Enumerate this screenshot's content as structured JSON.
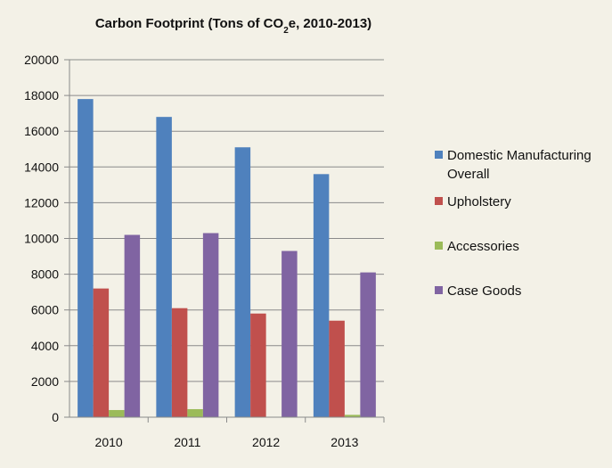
{
  "chart_data": {
    "type": "bar",
    "title": {
      "prefix": "Carbon Footprint (Tons  of CO",
      "subscript": "2",
      "suffix": "e, 2010-2013)"
    },
    "xlabel": "",
    "ylabel": "",
    "categories": [
      "2010",
      "2011",
      "2012",
      "2013"
    ],
    "series": [
      {
        "name": "Domestic Manufacturing Overall",
        "legend_lines": [
          "Domestic Manufacturing",
          "Overall"
        ],
        "color": "#4f81bd",
        "values": [
          17800,
          16800,
          15100,
          13600
        ]
      },
      {
        "name": "Upholstery",
        "legend_lines": [
          "Upholstery"
        ],
        "color": "#c0504d",
        "values": [
          7200,
          6100,
          5800,
          5400
        ]
      },
      {
        "name": "Accessories",
        "legend_lines": [
          "Accessories"
        ],
        "color": "#9bbb59",
        "values": [
          400,
          450,
          0,
          130
        ]
      },
      {
        "name": "Case Goods",
        "legend_lines": [
          "Case Goods"
        ],
        "color": "#8064a2",
        "values": [
          10200,
          10300,
          9300,
          8100
        ]
      }
    ],
    "ylim": [
      0,
      20000
    ],
    "yticks": [
      "0",
      "2000",
      "4000",
      "6000",
      "8000",
      "10000",
      "12000",
      "14000",
      "16000",
      "18000",
      "20000"
    ],
    "grid": true,
    "legend_position": "right"
  }
}
